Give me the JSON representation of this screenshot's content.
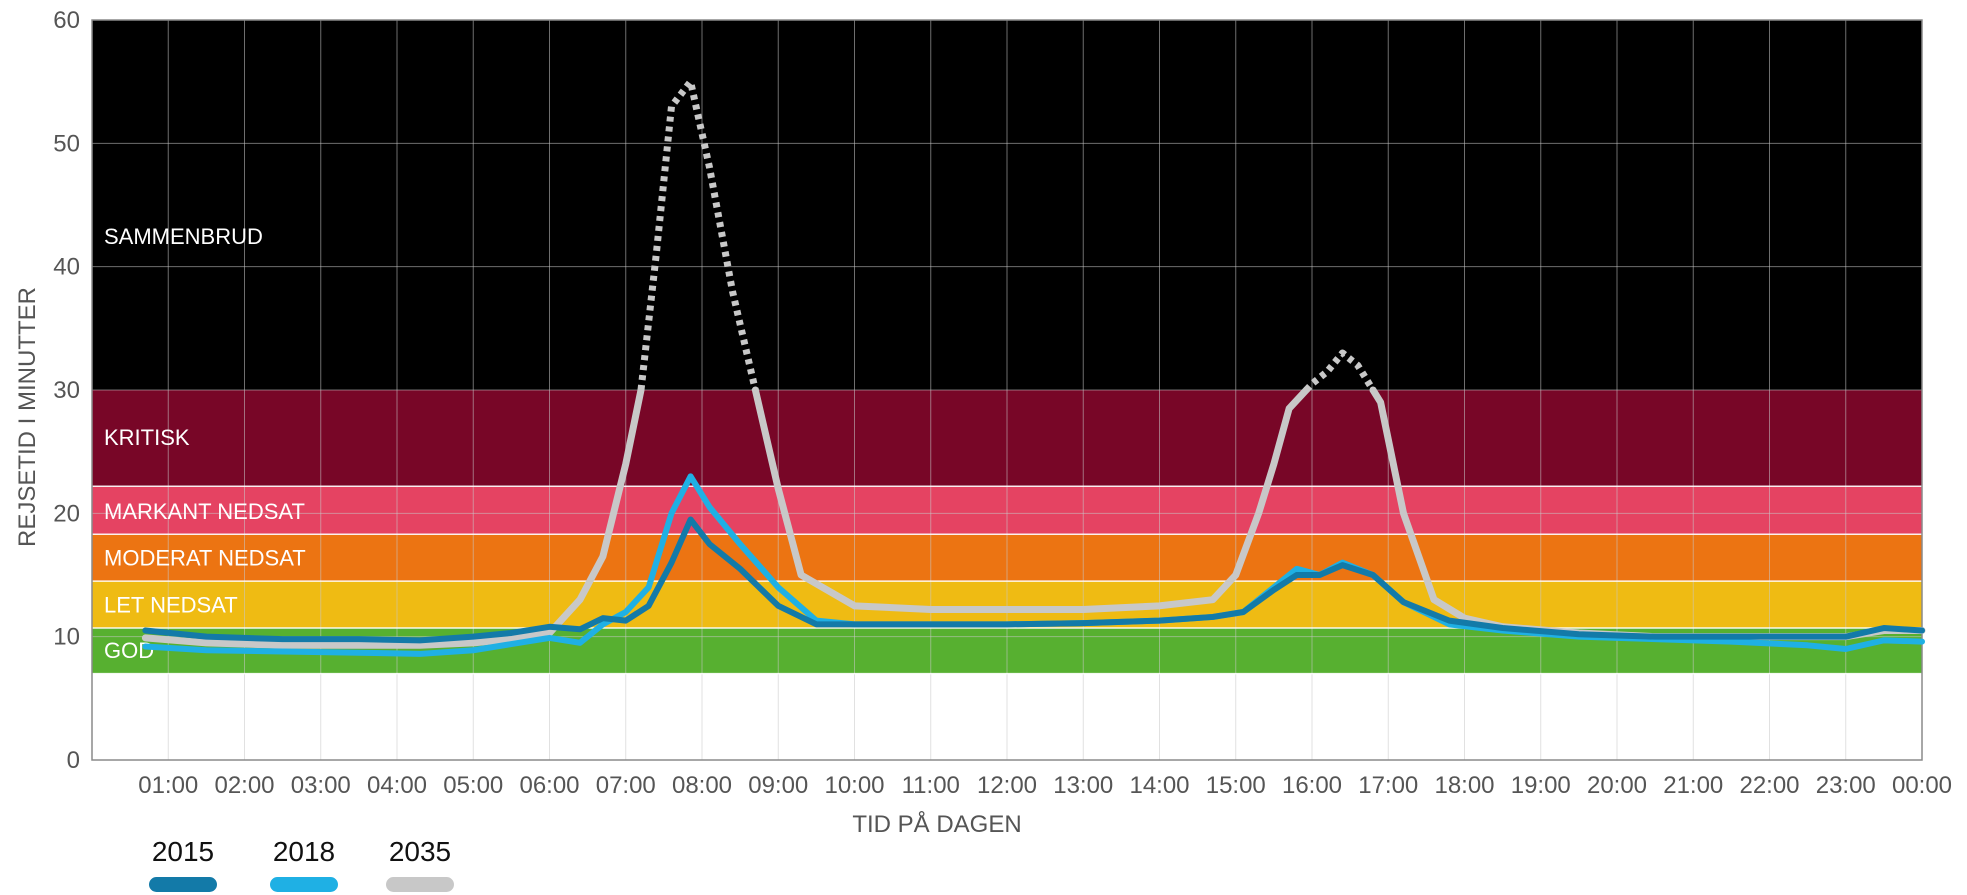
{
  "chart_data": {
    "type": "line",
    "xlabel": "TID PÅ DAGEN",
    "ylabel": "REJSETID I MINUTTER",
    "xlim": [
      0,
      24
    ],
    "ylim": [
      0,
      60
    ],
    "yticks": [
      "0",
      "10",
      "20",
      "30",
      "40",
      "50",
      "60"
    ],
    "xticks": [
      "01:00",
      "02:00",
      "03:00",
      "04:00",
      "05:00",
      "06:00",
      "07:00",
      "08:00",
      "09:00",
      "10:00",
      "11:00",
      "12:00",
      "13:00",
      "14:00",
      "15:00",
      "16:00",
      "17:00",
      "18:00",
      "19:00",
      "20:00",
      "21:00",
      "22:00",
      "23:00",
      "00:00"
    ],
    "grid": true,
    "legend_position": "bottom-left",
    "bands": [
      {
        "label": "GOD",
        "from": 7,
        "to": 10.7,
        "color": "#57b030"
      },
      {
        "label": "LET NEDSAT",
        "from": 10.7,
        "to": 14.5,
        "color": "#efbb13"
      },
      {
        "label": "MODERAT NEDSAT",
        "from": 14.5,
        "to": 18.3,
        "color": "#ec7412"
      },
      {
        "label": "MARKANT NEDSAT",
        "from": 18.3,
        "to": 22.2,
        "color": "#e54362"
      },
      {
        "label": "KRITISK",
        "from": 22.2,
        "to": 30,
        "color": "#780627"
      },
      {
        "label": "SAMMENBRUD",
        "from": 30,
        "to": 60,
        "color": "#000000"
      }
    ],
    "series": [
      {
        "name": "2015",
        "color": "#137aa8",
        "x": [
          0.7,
          1.5,
          2.5,
          3.5,
          4.3,
          5.0,
          5.5,
          6.0,
          6.4,
          6.7,
          7.0,
          7.3,
          7.6,
          7.85,
          8.1,
          8.5,
          9.0,
          9.5,
          10,
          11,
          12,
          13,
          14,
          14.7,
          15.1,
          15.5,
          15.8,
          16.1,
          16.4,
          16.8,
          17.2,
          17.8,
          18.5,
          19.5,
          20.5,
          21.5,
          22.5,
          23.0,
          23.5,
          24.0
        ],
        "y": [
          10.5,
          10.0,
          9.8,
          9.8,
          9.7,
          10.0,
          10.3,
          10.8,
          10.6,
          11.5,
          11.3,
          12.5,
          16.0,
          19.5,
          17.5,
          15.5,
          12.5,
          11.0,
          11.0,
          11.0,
          11.0,
          11.1,
          11.3,
          11.6,
          12.0,
          13.8,
          15.0,
          15.0,
          15.8,
          15.0,
          12.8,
          11.3,
          10.7,
          10.2,
          10.0,
          10.0,
          10.0,
          10.0,
          10.7,
          10.5
        ]
      },
      {
        "name": "2018",
        "color": "#1fb0e4",
        "x": [
          0.7,
          1.5,
          2.5,
          3.5,
          4.3,
          5.0,
          5.5,
          6.0,
          6.4,
          6.7,
          7.0,
          7.3,
          7.6,
          7.85,
          8.1,
          8.5,
          9.0,
          9.5,
          10,
          11,
          12,
          13,
          14,
          14.7,
          15.1,
          15.5,
          15.8,
          16.1,
          16.4,
          16.8,
          17.2,
          17.8,
          18.5,
          19.5,
          20.5,
          21.5,
          22.5,
          23.0,
          23.5,
          24.0
        ],
        "y": [
          9.2,
          8.9,
          8.8,
          8.7,
          8.6,
          8.9,
          9.4,
          9.9,
          9.5,
          11.0,
          12.0,
          14.0,
          20.0,
          23.0,
          20.5,
          17.5,
          14.0,
          11.3,
          11.0,
          11.0,
          11.0,
          11.1,
          11.3,
          11.6,
          12.0,
          14.0,
          15.5,
          15.0,
          16.0,
          15.0,
          12.8,
          11.0,
          10.5,
          10.0,
          9.8,
          9.6,
          9.3,
          9.0,
          9.7,
          9.6
        ]
      },
      {
        "name": "2035",
        "color": "#c8c8c8",
        "x": [
          0.7,
          1.5,
          2.5,
          3.5,
          4.3,
          5.0,
          5.5,
          6.0,
          6.4,
          6.7,
          7.0,
          7.2,
          7.4,
          7.6,
          7.85,
          8.1,
          8.4,
          8.7,
          9.0,
          9.3,
          10,
          11,
          12,
          13,
          14,
          14.7,
          15.0,
          15.3,
          15.5,
          15.7,
          16.0,
          16.2,
          16.4,
          16.6,
          16.9,
          17.2,
          17.6,
          18.0,
          18.5,
          19.5,
          20.5,
          21.5,
          22.5,
          23.0,
          23.5,
          24.0
        ],
        "y": [
          9.9,
          9.5,
          9.3,
          9.3,
          9.3,
          9.5,
          9.8,
          10.3,
          13.0,
          16.5,
          24.0,
          30.0,
          41.0,
          53.0,
          55.0,
          48.0,
          38.0,
          30.0,
          22.0,
          15.0,
          12.5,
          12.2,
          12.2,
          12.2,
          12.5,
          13.0,
          15.0,
          20.0,
          24.0,
          28.5,
          30.5,
          31.5,
          33.0,
          32.0,
          29.0,
          20.0,
          13.0,
          11.5,
          10.8,
          10.3,
          10.0,
          10.0,
          10.0,
          10.0,
          10.5,
          10.5
        ]
      }
    ]
  }
}
